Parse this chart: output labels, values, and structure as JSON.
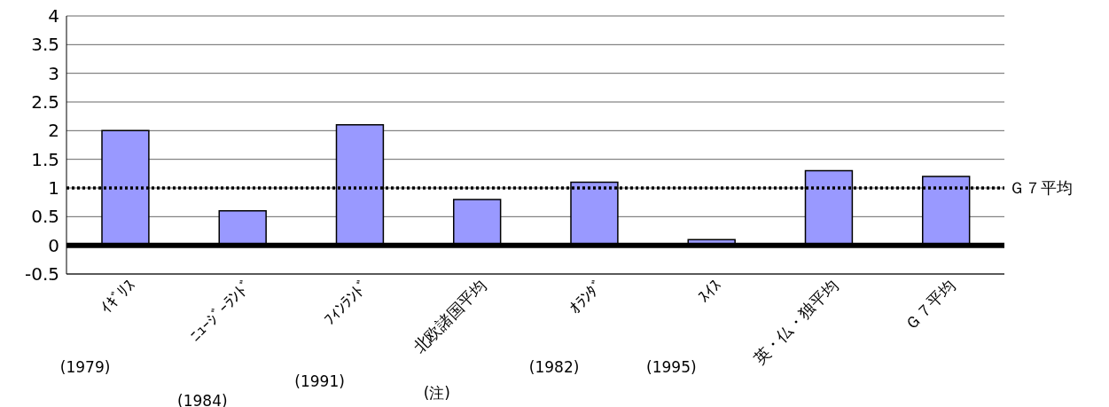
{
  "chart_data": {
    "type": "bar",
    "categories": [
      "ｲｷﾞﾘｽ",
      "ﾆｭｰｼﾞｰﾗﾝﾄﾞ",
      "ﾌｨﾝﾗﾝﾄﾞ",
      "北欧諸国平均",
      "ｵﾗﾝﾀﾞ",
      "ｽｲｽ",
      "英・仏・独平均",
      "Ｇ７平均"
    ],
    "values": [
      2.0,
      0.6,
      2.1,
      0.8,
      1.1,
      0.1,
      1.3,
      1.2
    ],
    "color": "#9999ff",
    "ylim": [
      -0.5,
      4
    ],
    "yticks": [
      -0.5,
      0,
      0.5,
      1,
      1.5,
      2,
      2.5,
      3,
      3.5,
      4
    ],
    "grid": "y",
    "legend": false,
    "ref_lines": [
      {
        "axis": "y",
        "value": 1,
        "label": "Ｇ７平均",
        "color": "#000000",
        "line_style": "dotted"
      }
    ],
    "annotations": [
      "(1979)",
      "(1984)",
      "(1991)",
      "(注)",
      "(1982)",
      "(1995)"
    ]
  }
}
